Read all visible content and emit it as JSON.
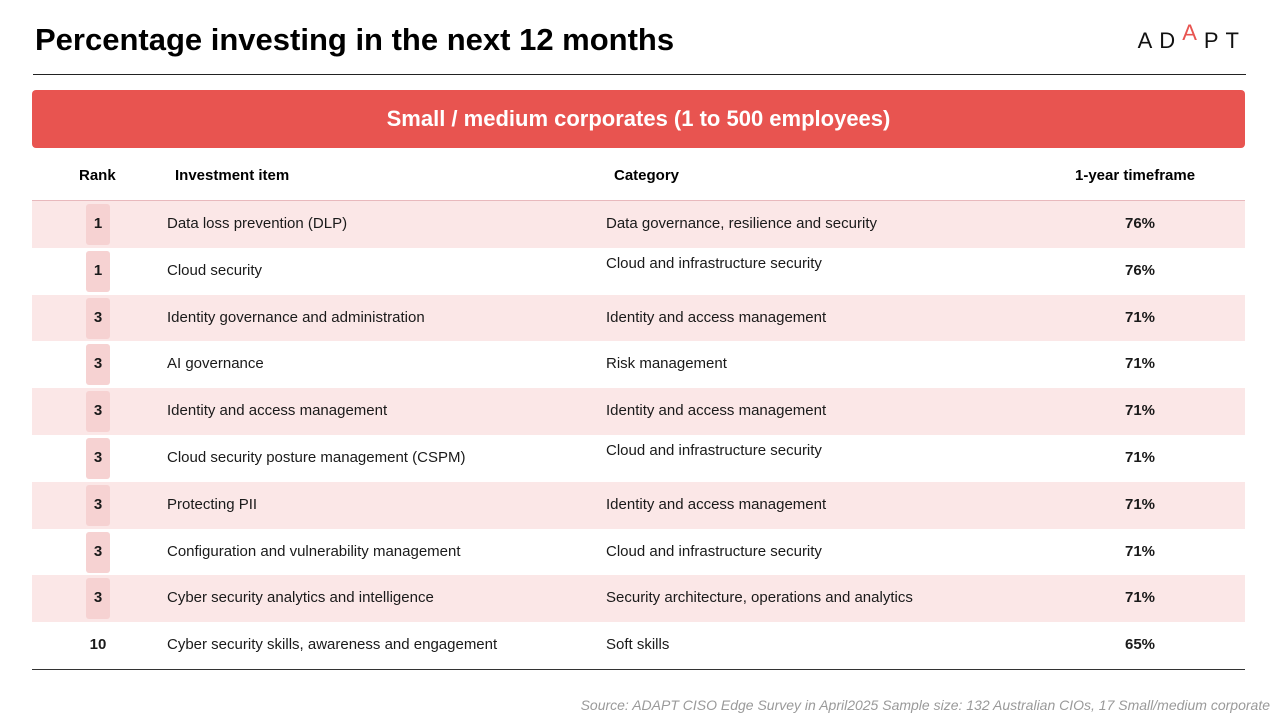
{
  "header": {
    "title": "Percentage investing in the next 12 months",
    "logo": {
      "part1": "AD",
      "part2": "A",
      "part3": "PT"
    }
  },
  "colors": {
    "accent": "#e85450",
    "row_shade": "#fbe7e7",
    "rank_pill": "#f6d2d2"
  },
  "banner": {
    "label": "Small / medium corporates (1 to 500 employees)"
  },
  "table": {
    "columns": {
      "rank": "Rank",
      "item": "Investment item",
      "category": "Category",
      "timeframe": "1-year timeframe"
    },
    "rows": [
      {
        "rank": "1",
        "item": "Data loss prevention (DLP)",
        "category": "Data governance, resilience and security",
        "pct": "76%",
        "shaded": true,
        "pill": true,
        "cat_top": false
      },
      {
        "rank": "1",
        "item": "Cloud security",
        "category": "Cloud and infrastructure security",
        "pct": "76%",
        "shaded": false,
        "pill": true,
        "cat_top": true
      },
      {
        "rank": "3",
        "item": "Identity governance and administration",
        "category": "Identity and access management",
        "pct": "71%",
        "shaded": true,
        "pill": true,
        "cat_top": false
      },
      {
        "rank": "3",
        "item": "AI governance",
        "category": "Risk management",
        "pct": "71%",
        "shaded": false,
        "pill": true,
        "cat_top": false
      },
      {
        "rank": "3",
        "item": "Identity and access management",
        "category": "Identity and access management",
        "pct": "71%",
        "shaded": true,
        "pill": true,
        "cat_top": false
      },
      {
        "rank": "3",
        "item": "Cloud security posture management (CSPM)",
        "category": "Cloud and infrastructure security",
        "pct": "71%",
        "shaded": false,
        "pill": true,
        "cat_top": true
      },
      {
        "rank": "3",
        "item": "Protecting PII",
        "category": "Identity and access management",
        "pct": "71%",
        "shaded": true,
        "pill": true,
        "cat_top": false
      },
      {
        "rank": "3",
        "item": "Configuration and vulnerability management",
        "category": "Cloud and infrastructure security",
        "pct": "71%",
        "shaded": false,
        "pill": true,
        "cat_top": false
      },
      {
        "rank": "3",
        "item": "Cyber security analytics and intelligence",
        "category": "Security architecture, operations and analytics",
        "pct": "71%",
        "shaded": true,
        "pill": true,
        "cat_top": false
      },
      {
        "rank": "10",
        "item": "Cyber security skills, awareness and engagement",
        "category": "Soft skills",
        "pct": "65%",
        "shaded": false,
        "pill": false,
        "cat_top": false
      }
    ]
  },
  "footer": {
    "source": "Source: ADAPT CISO Edge Survey in April2025 Sample size: 132 Australian CIOs, 17 Small/medium corporate"
  }
}
